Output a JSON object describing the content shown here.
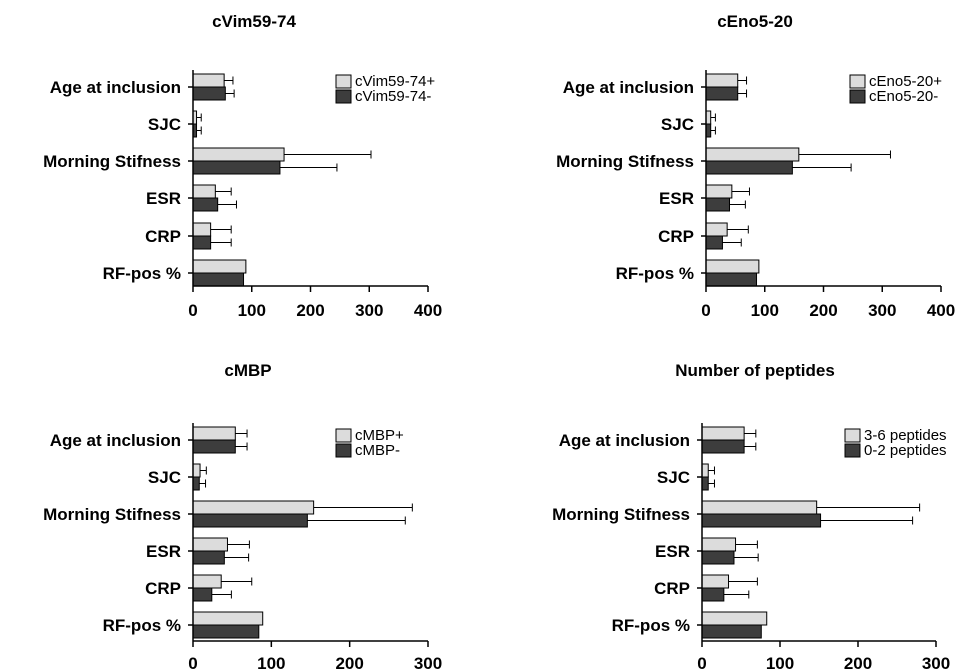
{
  "colors": {
    "series_a": "#dcdcdc",
    "series_b": "#3d3d3d",
    "axis": "#000000"
  },
  "chart_data": [
    {
      "type": "bar",
      "orientation": "horizontal",
      "title": "cVim59-74",
      "categories": [
        "Age at inclusion",
        "SJC",
        "Morning Stifness",
        "ESR",
        "CRP",
        "RF-pos %"
      ],
      "series": [
        {
          "name": "cVim59-74+",
          "values": [
            53,
            6,
            155,
            38,
            30,
            90
          ],
          "errors": [
            15,
            8,
            148,
            27,
            35,
            0
          ]
        },
        {
          "name": "cVim59-74-",
          "values": [
            55,
            6,
            148,
            42,
            30,
            86
          ],
          "errors": [
            15,
            8,
            97,
            32,
            35,
            0
          ]
        }
      ],
      "xlim": [
        0,
        400
      ],
      "xticks": [
        "0",
        "100",
        "200",
        "300",
        "400"
      ]
    },
    {
      "type": "bar",
      "orientation": "horizontal",
      "title": "cEno5-20",
      "categories": [
        "Age at inclusion",
        "SJC",
        "Morning Stifness",
        "ESR",
        "CRP",
        "RF-pos %"
      ],
      "series": [
        {
          "name": "cEno5-20+",
          "values": [
            54,
            8,
            158,
            44,
            36,
            90
          ],
          "errors": [
            15,
            8,
            156,
            30,
            36,
            0
          ]
        },
        {
          "name": "cEno5-20-",
          "values": [
            54,
            8,
            147,
            40,
            28,
            86
          ],
          "errors": [
            15,
            8,
            100,
            27,
            32,
            0
          ]
        }
      ],
      "xlim": [
        0,
        400
      ],
      "xticks": [
        "0",
        "100",
        "200",
        "300",
        "400"
      ]
    },
    {
      "type": "bar",
      "orientation": "horizontal",
      "title": "cMBP",
      "categories": [
        "Age at inclusion",
        "SJC",
        "Morning Stifness",
        "ESR",
        "CRP",
        "RF-pos %"
      ],
      "series": [
        {
          "name": "cMBP+",
          "values": [
            54,
            9,
            154,
            44,
            36,
            89
          ],
          "errors": [
            15,
            8,
            126,
            28,
            39,
            0
          ]
        },
        {
          "name": "cMBP-",
          "values": [
            54,
            8,
            146,
            40,
            24,
            84
          ],
          "errors": [
            15,
            8,
            125,
            31,
            25,
            0
          ]
        }
      ],
      "xlim": [
        0,
        300
      ],
      "xticks": [
        "0",
        "100",
        "200",
        "300"
      ]
    },
    {
      "type": "bar",
      "orientation": "horizontal",
      "title": "Number of peptides",
      "categories": [
        "Age at inclusion",
        "SJC",
        "Morning Stifness",
        "ESR",
        "CRP",
        "RF-pos %"
      ],
      "series": [
        {
          "name": "3-6 peptides",
          "values": [
            54,
            8,
            147,
            43,
            34,
            83
          ],
          "errors": [
            15,
            8,
            132,
            28,
            37,
            0
          ]
        },
        {
          "name": "0-2 peptides",
          "values": [
            54,
            8,
            152,
            41,
            28,
            76
          ],
          "errors": [
            15,
            8,
            118,
            31,
            32,
            0
          ]
        }
      ],
      "xlim": [
        0,
        300
      ],
      "xticks": [
        "0",
        "100",
        "200",
        "300"
      ]
    }
  ]
}
